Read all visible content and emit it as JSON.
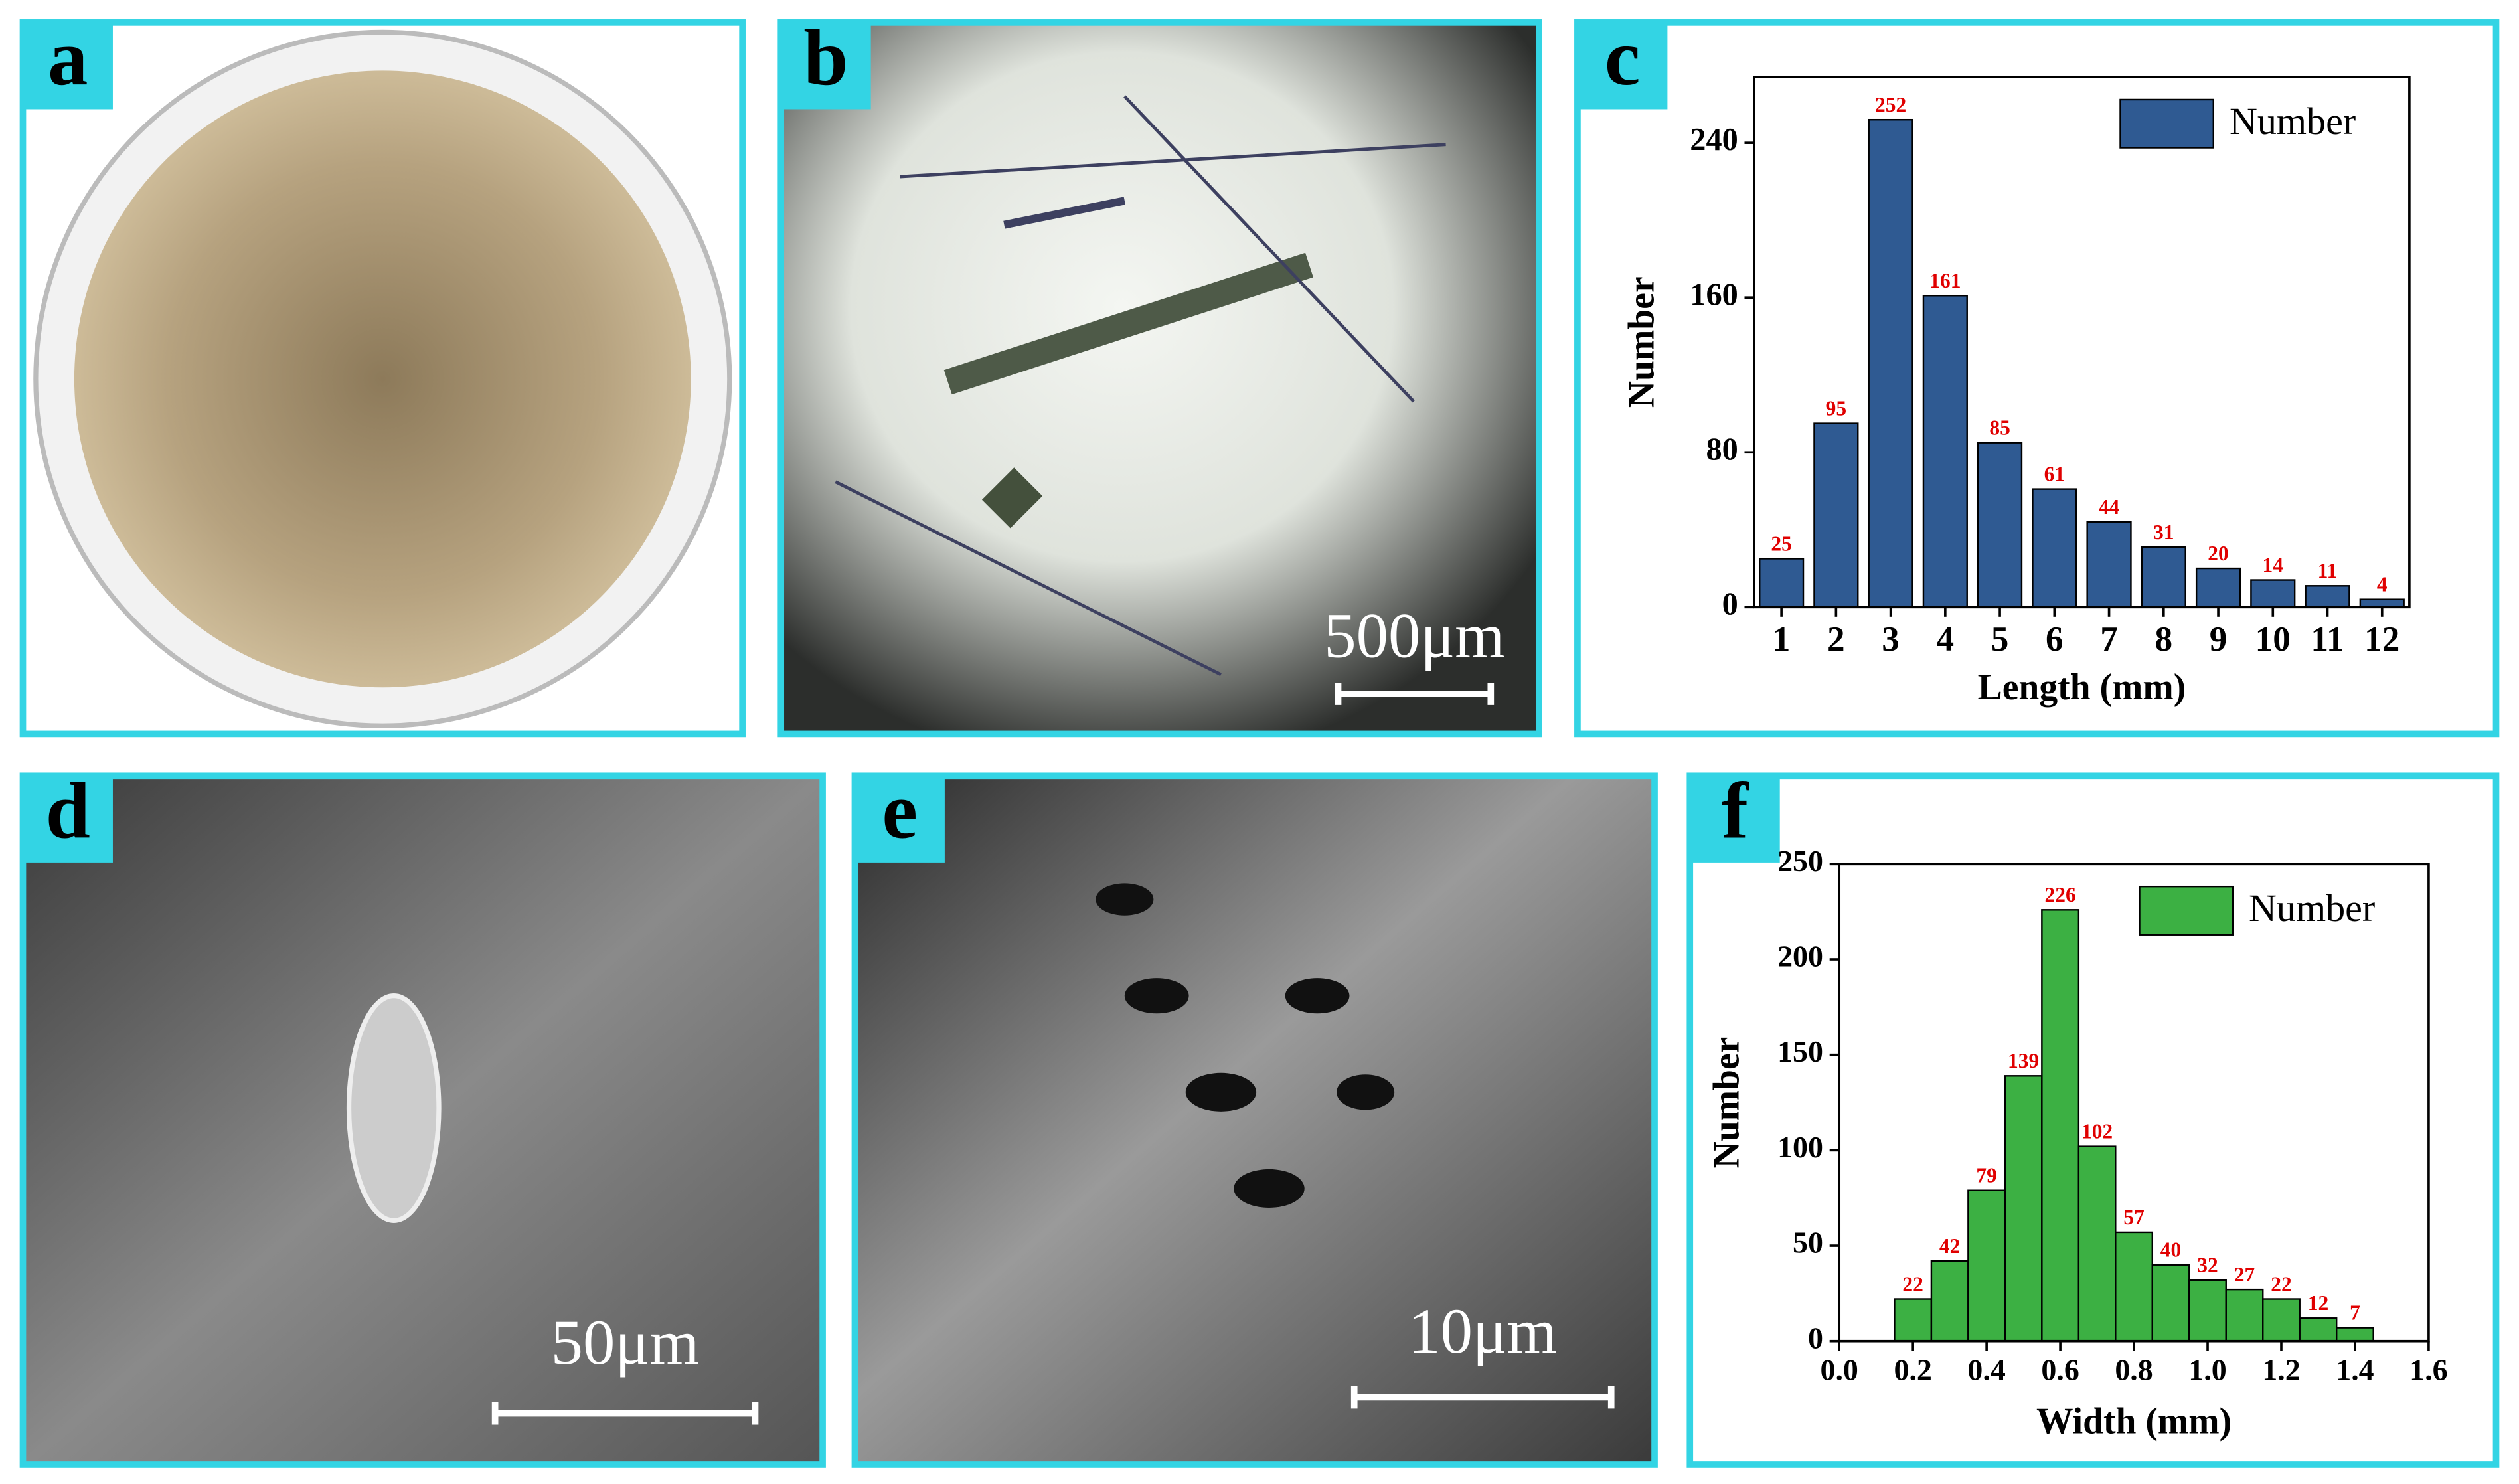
{
  "panels": [
    {
      "label": "a"
    },
    {
      "label": "b",
      "scale_bar": "500μm"
    },
    {
      "label": "c"
    },
    {
      "label": "d",
      "scale_bar": "50μm"
    },
    {
      "label": "e",
      "scale_bar": "10μm"
    },
    {
      "label": "f"
    }
  ],
  "chart_data": [
    {
      "type": "bar",
      "categories": [
        "1",
        "2",
        "3",
        "4",
        "5",
        "6",
        "7",
        "8",
        "9",
        "10",
        "11",
        "12"
      ],
      "series": [
        {
          "name": "Number",
          "color": "#2f5a92",
          "values": [
            25,
            95,
            252,
            161,
            85,
            61,
            44,
            31,
            20,
            14,
            11,
            4
          ]
        }
      ],
      "x_label": "Length (mm)",
      "y_label": "Number",
      "ylim": [
        0,
        274
      ],
      "yticks": [
        0,
        80,
        160,
        240
      ],
      "legend": "upper right",
      "value_label_color": "#e00000"
    },
    {
      "type": "histogram",
      "bins": [
        0.15,
        0.25,
        0.35,
        0.45,
        0.55,
        0.65,
        0.75,
        0.85,
        0.95,
        1.05,
        1.15,
        1.25,
        1.35,
        1.45
      ],
      "series": [
        {
          "name": "Number",
          "color": "#3cb043",
          "values": [
            22,
            42,
            79,
            139,
            226,
            102,
            57,
            40,
            32,
            27,
            22,
            12,
            7
          ]
        }
      ],
      "x_label": "Width (mm)",
      "y_label": "Number",
      "xlim": [
        0,
        1.6
      ],
      "xticks": [
        {
          "value": 0,
          "label": "0.0"
        },
        {
          "value": 0.2,
          "label": "0.2"
        },
        {
          "value": 0.4,
          "label": "0.4"
        },
        {
          "value": 0.6,
          "label": "0.6"
        },
        {
          "value": 0.8,
          "label": "0.8"
        },
        {
          "value": 1,
          "label": "1.0"
        },
        {
          "value": 1.2,
          "label": "1.2"
        },
        {
          "value": 1.4,
          "label": "1.4"
        },
        {
          "value": 1.6,
          "label": "1.6"
        }
      ],
      "ylim": [
        0,
        250
      ],
      "yticks": [
        0,
        50,
        100,
        150,
        200,
        250
      ],
      "legend": "upper right",
      "value_label_color": "#e00000"
    }
  ]
}
